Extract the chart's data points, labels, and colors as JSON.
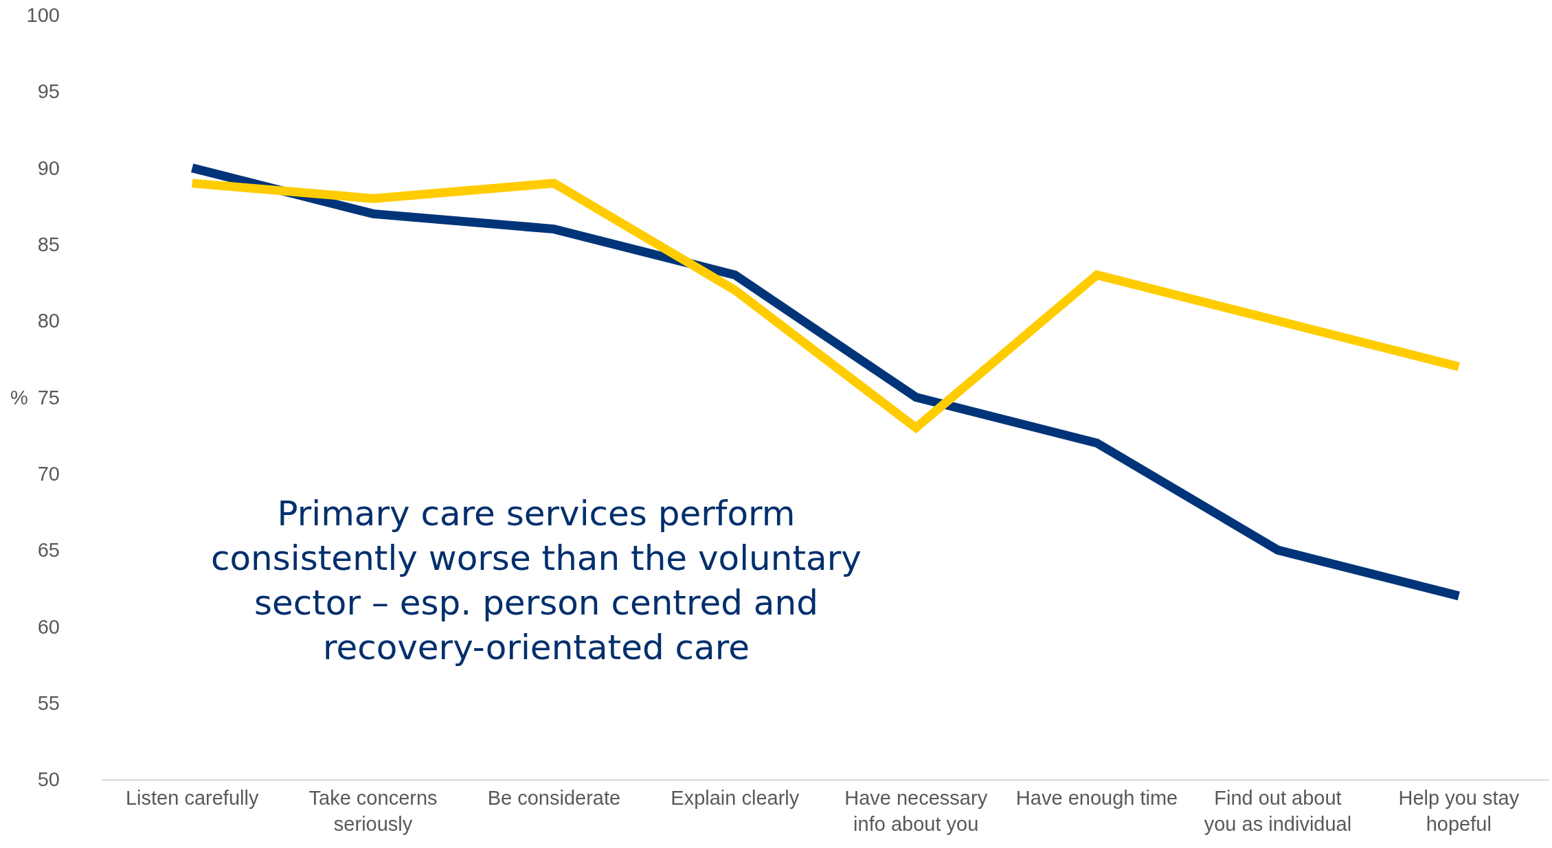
{
  "chart_data": {
    "type": "line",
    "ylabel": "%",
    "categories": [
      "Listen carefully",
      "Take concerns seriously",
      "Be considerate",
      "Explain clearly",
      "Have necessary info about you",
      "Have enough time",
      "Find out about you as individual",
      "Help you stay hopeful"
    ],
    "series": [
      {
        "color": "#003478",
        "values": [
          90,
          87,
          86,
          83,
          75,
          72,
          65,
          62
        ]
      },
      {
        "color": "#ffcc00",
        "values": [
          89,
          88,
          89,
          82,
          73,
          83,
          80,
          77
        ]
      }
    ],
    "ylim": [
      50,
      100
    ],
    "yticks": [
      50,
      55,
      60,
      65,
      70,
      75,
      80,
      85,
      90,
      95,
      100
    ],
    "legend": false,
    "marker": "none",
    "line_style": "solid",
    "annotations": [
      "Primary care services perform consistently worse than the voluntary sector – esp. person centred and recovery-orientated care"
    ]
  }
}
